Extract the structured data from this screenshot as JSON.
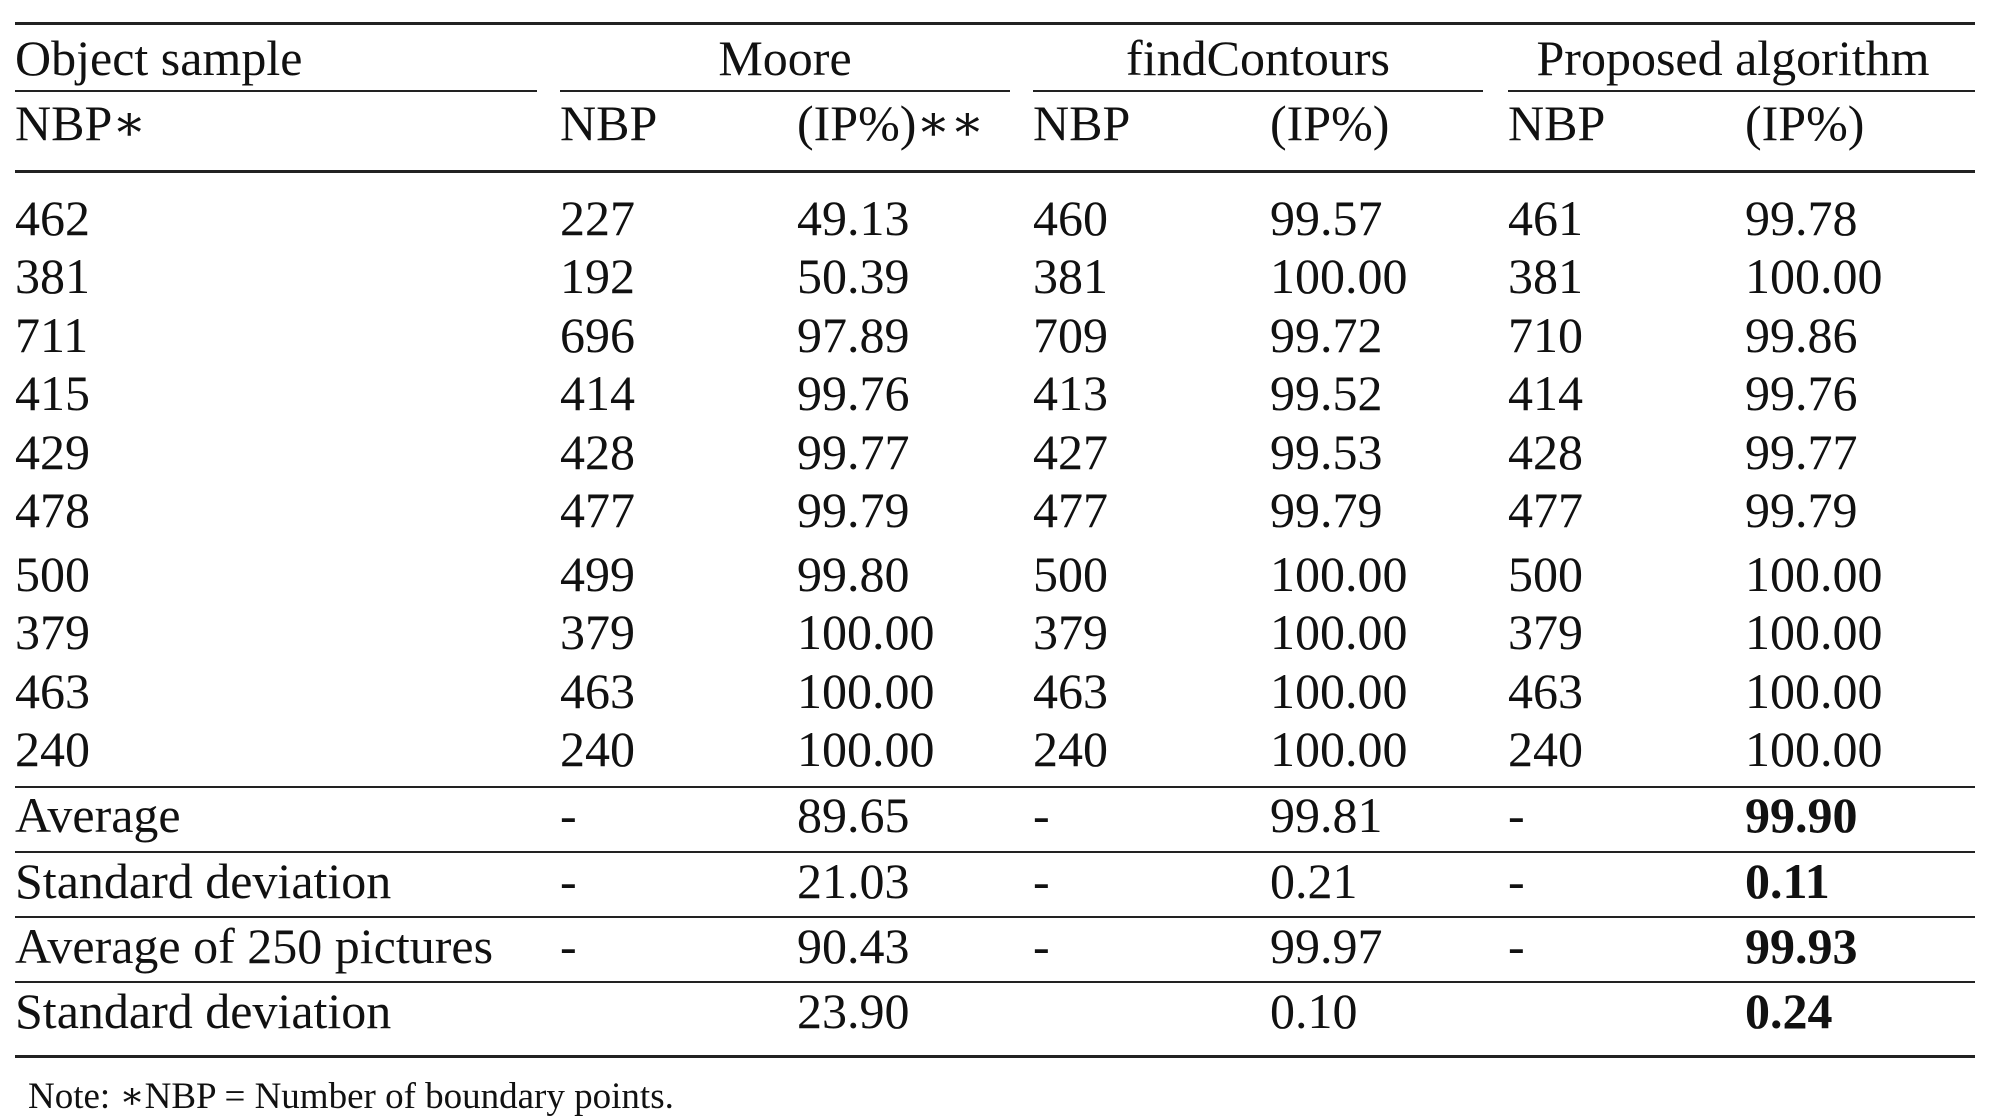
{
  "table": {
    "header": {
      "object_sample": "Object sample",
      "groups": [
        "Moore",
        "findContours",
        "Proposed algorithm"
      ],
      "sub_labels": [
        "NBP∗",
        "NBP",
        "(IP%)∗∗",
        "NBP",
        "(IP%)",
        "NBP",
        "(IP%)"
      ]
    },
    "rows": [
      [
        "462",
        "227",
        "49.13",
        "460",
        "99.57",
        "461",
        "99.78"
      ],
      [
        "381",
        "192",
        "50.39",
        "381",
        "100.00",
        "381",
        "100.00"
      ],
      [
        "711",
        "696",
        "97.89",
        "709",
        "99.72",
        "710",
        "99.86"
      ],
      [
        "415",
        "414",
        "99.76",
        "413",
        "99.52",
        "414",
        "99.76"
      ],
      [
        "429",
        "428",
        "99.77",
        "427",
        "99.53",
        "428",
        "99.77"
      ],
      [
        "478",
        "477",
        "99.79",
        "477",
        "99.79",
        "477",
        "99.79"
      ],
      [
        "500",
        "499",
        "99.80",
        "500",
        "100.00",
        "500",
        "100.00"
      ],
      [
        "379",
        "379",
        "100.00",
        "379",
        "100.00",
        "379",
        "100.00"
      ],
      [
        "463",
        "463",
        "100.00",
        "463",
        "100.00",
        "463",
        "100.00"
      ],
      [
        "240",
        "240",
        "100.00",
        "240",
        "100.00",
        "240",
        "100.00"
      ]
    ],
    "summary": [
      [
        "Average",
        "-",
        "89.65",
        "-",
        "99.81",
        "-",
        "99.90"
      ],
      [
        "Standard deviation",
        "-",
        "21.03",
        "-",
        "0.21",
        "-",
        "0.11"
      ],
      [
        "Average of 250 pictures",
        "-",
        "90.43",
        "-",
        "99.97",
        "-",
        "99.93"
      ],
      [
        "Standard deviation",
        "",
        "23.90",
        "",
        "0.10",
        "",
        "0.24"
      ]
    ]
  },
  "note": "Note: ∗NBP = Number of boundary points."
}
